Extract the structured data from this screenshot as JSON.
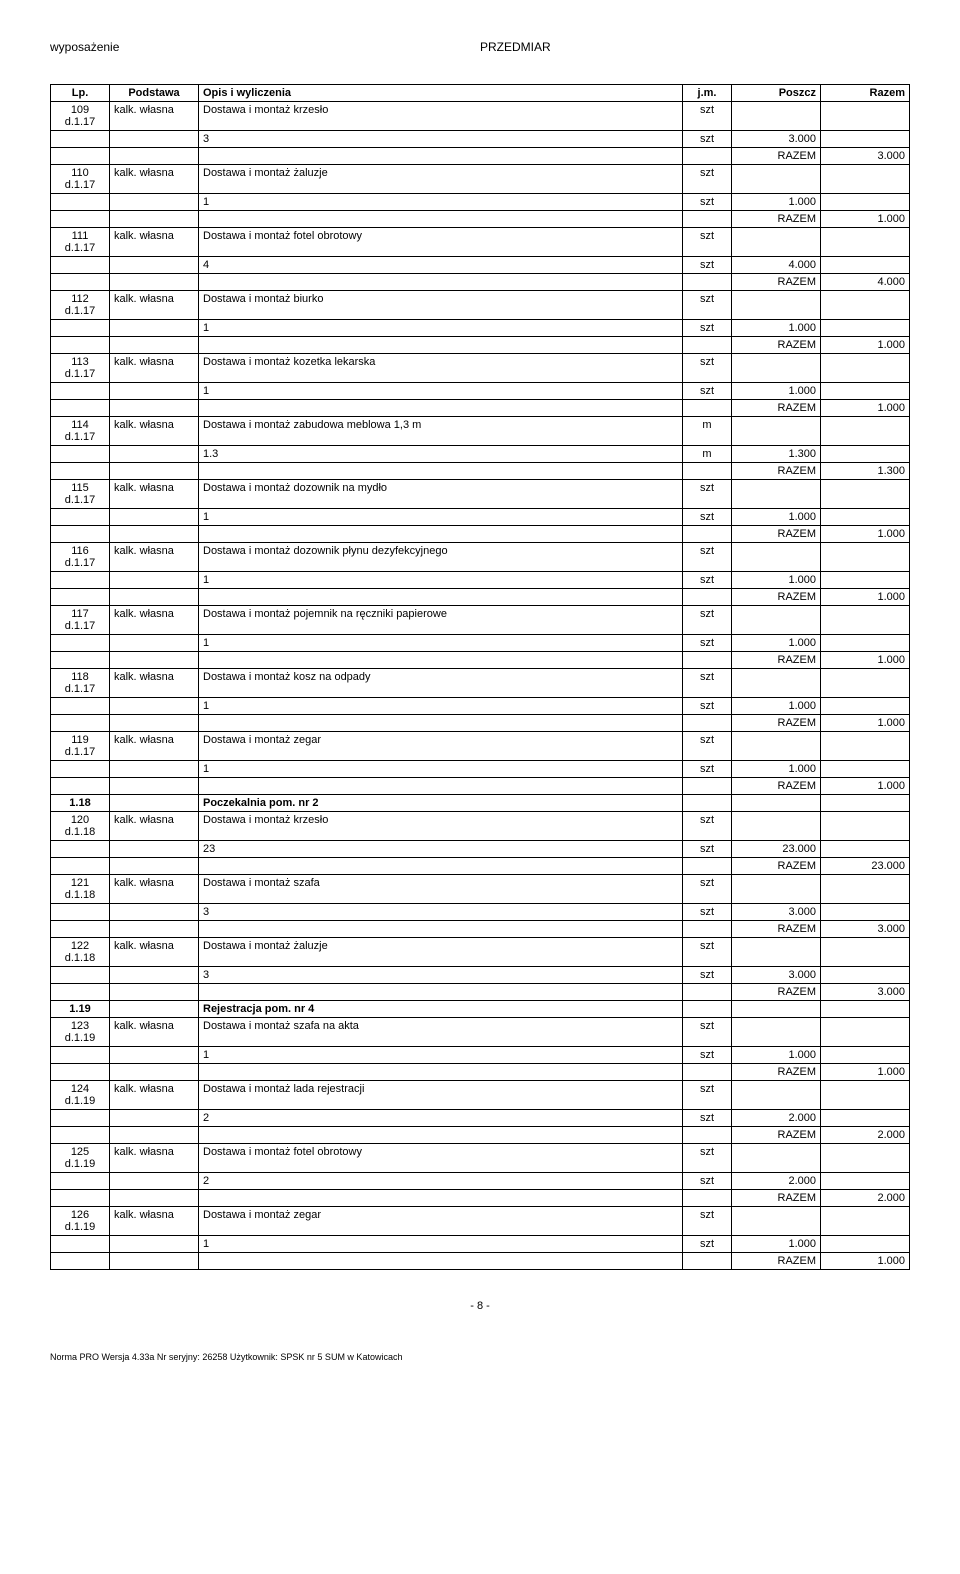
{
  "header": {
    "left": "wyposażenie",
    "right": "PRZEDMIAR"
  },
  "columns": {
    "lp": "Lp.",
    "podstawa": "Podstawa",
    "opis": "Opis i wyliczenia",
    "jm": "j.m.",
    "poszcz": "Poszcz",
    "razem": "Razem"
  },
  "rows": [
    {
      "lp": "109\nd.1.17",
      "pod": "kalk. własna",
      "opis": "Dostawa i montaż krzesło",
      "jm": "szt",
      "poszcz": "",
      "razem": ""
    },
    {
      "lp": "",
      "pod": "",
      "opis": "3",
      "jm": "szt",
      "poszcz": "3.000",
      "razem": ""
    },
    {
      "lp": "",
      "pod": "",
      "opis": "",
      "jm": "",
      "poszcz": "RAZEM",
      "razem": "3.000"
    },
    {
      "lp": "110\nd.1.17",
      "pod": "kalk. własna",
      "opis": "Dostawa i montaż żaluzje",
      "jm": "szt",
      "poszcz": "",
      "razem": ""
    },
    {
      "lp": "",
      "pod": "",
      "opis": "1",
      "jm": "szt",
      "poszcz": "1.000",
      "razem": ""
    },
    {
      "lp": "",
      "pod": "",
      "opis": "",
      "jm": "",
      "poszcz": "RAZEM",
      "razem": "1.000"
    },
    {
      "lp": "111\nd.1.17",
      "pod": "kalk. własna",
      "opis": "Dostawa i montaż fotel obrotowy",
      "jm": "szt",
      "poszcz": "",
      "razem": ""
    },
    {
      "lp": "",
      "pod": "",
      "opis": "4",
      "jm": "szt",
      "poszcz": "4.000",
      "razem": ""
    },
    {
      "lp": "",
      "pod": "",
      "opis": "",
      "jm": "",
      "poszcz": "RAZEM",
      "razem": "4.000"
    },
    {
      "lp": "112\nd.1.17",
      "pod": "kalk. własna",
      "opis": "Dostawa i montaż biurko",
      "jm": "szt",
      "poszcz": "",
      "razem": ""
    },
    {
      "lp": "",
      "pod": "",
      "opis": "1",
      "jm": "szt",
      "poszcz": "1.000",
      "razem": ""
    },
    {
      "lp": "",
      "pod": "",
      "opis": "",
      "jm": "",
      "poszcz": "RAZEM",
      "razem": "1.000"
    },
    {
      "lp": "113\nd.1.17",
      "pod": "kalk. własna",
      "opis": "Dostawa i montaż kozetka lekarska",
      "jm": "szt",
      "poszcz": "",
      "razem": ""
    },
    {
      "lp": "",
      "pod": "",
      "opis": "1",
      "jm": "szt",
      "poszcz": "1.000",
      "razem": ""
    },
    {
      "lp": "",
      "pod": "",
      "opis": "",
      "jm": "",
      "poszcz": "RAZEM",
      "razem": "1.000"
    },
    {
      "lp": "114\nd.1.17",
      "pod": "kalk. własna",
      "opis": "Dostawa i montaż zabudowa meblowa 1,3 m",
      "jm": "m",
      "poszcz": "",
      "razem": ""
    },
    {
      "lp": "",
      "pod": "",
      "opis": "1.3",
      "jm": "m",
      "poszcz": "1.300",
      "razem": ""
    },
    {
      "lp": "",
      "pod": "",
      "opis": "",
      "jm": "",
      "poszcz": "RAZEM",
      "razem": "1.300"
    },
    {
      "lp": "115\nd.1.17",
      "pod": "kalk. własna",
      "opis": "Dostawa i montaż dozownik na mydło",
      "jm": "szt",
      "poszcz": "",
      "razem": ""
    },
    {
      "lp": "",
      "pod": "",
      "opis": "1",
      "jm": "szt",
      "poszcz": "1.000",
      "razem": ""
    },
    {
      "lp": "",
      "pod": "",
      "opis": "",
      "jm": "",
      "poszcz": "RAZEM",
      "razem": "1.000"
    },
    {
      "lp": "116\nd.1.17",
      "pod": "kalk. własna",
      "opis": "Dostawa i montaż dozownik płynu dezyfekcyjnego",
      "jm": "szt",
      "poszcz": "",
      "razem": ""
    },
    {
      "lp": "",
      "pod": "",
      "opis": "1",
      "jm": "szt",
      "poszcz": "1.000",
      "razem": ""
    },
    {
      "lp": "",
      "pod": "",
      "opis": "",
      "jm": "",
      "poszcz": "RAZEM",
      "razem": "1.000"
    },
    {
      "lp": "117\nd.1.17",
      "pod": "kalk. własna",
      "opis": "Dostawa i montaż pojemnik na ręczniki papierowe",
      "jm": "szt",
      "poszcz": "",
      "razem": ""
    },
    {
      "lp": "",
      "pod": "",
      "opis": "1",
      "jm": "szt",
      "poszcz": "1.000",
      "razem": ""
    },
    {
      "lp": "",
      "pod": "",
      "opis": "",
      "jm": "",
      "poszcz": "RAZEM",
      "razem": "1.000"
    },
    {
      "lp": "118\nd.1.17",
      "pod": "kalk. własna",
      "opis": "Dostawa i montaż kosz na odpady",
      "jm": "szt",
      "poszcz": "",
      "razem": ""
    },
    {
      "lp": "",
      "pod": "",
      "opis": "1",
      "jm": "szt",
      "poszcz": "1.000",
      "razem": ""
    },
    {
      "lp": "",
      "pod": "",
      "opis": "",
      "jm": "",
      "poszcz": "RAZEM",
      "razem": "1.000"
    },
    {
      "lp": "119\nd.1.17",
      "pod": "kalk. własna",
      "opis": "Dostawa i montaż zegar",
      "jm": "szt",
      "poszcz": "",
      "razem": ""
    },
    {
      "lp": "",
      "pod": "",
      "opis": "1",
      "jm": "szt",
      "poszcz": "1.000",
      "razem": ""
    },
    {
      "lp": "",
      "pod": "",
      "opis": "",
      "jm": "",
      "poszcz": "RAZEM",
      "razem": "1.000"
    },
    {
      "lp": "1.18",
      "pod": "",
      "opis": "Poczekalnia pom. nr 2",
      "jm": "",
      "poszcz": "",
      "razem": "",
      "section": true
    },
    {
      "lp": "120\nd.1.18",
      "pod": "kalk. własna",
      "opis": "Dostawa i montaż krzesło",
      "jm": "szt",
      "poszcz": "",
      "razem": ""
    },
    {
      "lp": "",
      "pod": "",
      "opis": "23",
      "jm": "szt",
      "poszcz": "23.000",
      "razem": ""
    },
    {
      "lp": "",
      "pod": "",
      "opis": "",
      "jm": "",
      "poszcz": "RAZEM",
      "razem": "23.000"
    },
    {
      "lp": "121\nd.1.18",
      "pod": "kalk. własna",
      "opis": "Dostawa i montaż szafa",
      "jm": "szt",
      "poszcz": "",
      "razem": ""
    },
    {
      "lp": "",
      "pod": "",
      "opis": "3",
      "jm": "szt",
      "poszcz": "3.000",
      "razem": ""
    },
    {
      "lp": "",
      "pod": "",
      "opis": "",
      "jm": "",
      "poszcz": "RAZEM",
      "razem": "3.000"
    },
    {
      "lp": "122\nd.1.18",
      "pod": "kalk. własna",
      "opis": "Dostawa i montaż żaluzje",
      "jm": "szt",
      "poszcz": "",
      "razem": ""
    },
    {
      "lp": "",
      "pod": "",
      "opis": "3",
      "jm": "szt",
      "poszcz": "3.000",
      "razem": ""
    },
    {
      "lp": "",
      "pod": "",
      "opis": "",
      "jm": "",
      "poszcz": "RAZEM",
      "razem": "3.000"
    },
    {
      "lp": "1.19",
      "pod": "",
      "opis": "Rejestracja pom. nr 4",
      "jm": "",
      "poszcz": "",
      "razem": "",
      "section": true
    },
    {
      "lp": "123\nd.1.19",
      "pod": "kalk. własna",
      "opis": "Dostawa i montaż szafa na akta",
      "jm": "szt",
      "poszcz": "",
      "razem": ""
    },
    {
      "lp": "",
      "pod": "",
      "opis": "1",
      "jm": "szt",
      "poszcz": "1.000",
      "razem": ""
    },
    {
      "lp": "",
      "pod": "",
      "opis": "",
      "jm": "",
      "poszcz": "RAZEM",
      "razem": "1.000"
    },
    {
      "lp": "124\nd.1.19",
      "pod": "kalk. własna",
      "opis": "Dostawa i montaż lada rejestracji",
      "jm": "szt",
      "poszcz": "",
      "razem": ""
    },
    {
      "lp": "",
      "pod": "",
      "opis": "2",
      "jm": "szt",
      "poszcz": "2.000",
      "razem": ""
    },
    {
      "lp": "",
      "pod": "",
      "opis": "",
      "jm": "",
      "poszcz": "RAZEM",
      "razem": "2.000"
    },
    {
      "lp": "125\nd.1.19",
      "pod": "kalk. własna",
      "opis": "Dostawa i montaż fotel obrotowy",
      "jm": "szt",
      "poszcz": "",
      "razem": ""
    },
    {
      "lp": "",
      "pod": "",
      "opis": "2",
      "jm": "szt",
      "poszcz": "2.000",
      "razem": ""
    },
    {
      "lp": "",
      "pod": "",
      "opis": "",
      "jm": "",
      "poszcz": "RAZEM",
      "razem": "2.000"
    },
    {
      "lp": "126\nd.1.19",
      "pod": "kalk. własna",
      "opis": "Dostawa i montaż zegar",
      "jm": "szt",
      "poszcz": "",
      "razem": ""
    },
    {
      "lp": "",
      "pod": "",
      "opis": "1",
      "jm": "szt",
      "poszcz": "1.000",
      "razem": ""
    },
    {
      "lp": "",
      "pod": "",
      "opis": "",
      "jm": "",
      "poszcz": "RAZEM",
      "razem": "1.000"
    }
  ],
  "footer": {
    "page": "- 8 -",
    "note": "Norma PRO Wersja 4.33a Nr seryjny: 26258 Użytkownik: SPSK nr 5 SUM w Katowicach"
  }
}
